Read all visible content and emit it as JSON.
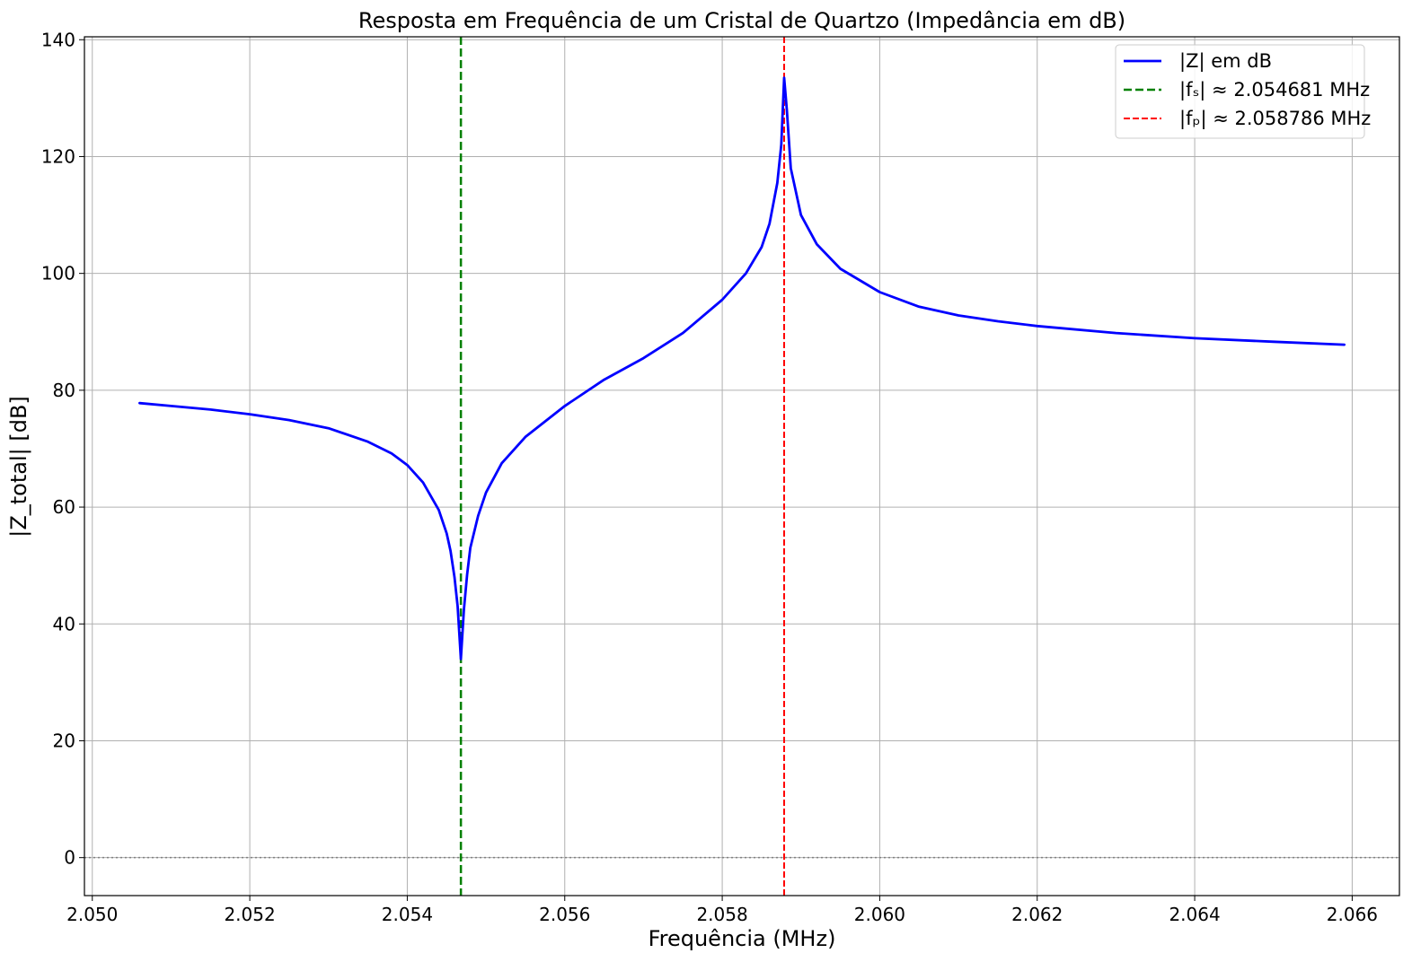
{
  "chart_data": {
    "type": "line",
    "title": "Resposta em Frequência de um Cristal de Quartzo (Impedância em dB)",
    "xlabel": "Frequência (MHz)",
    "ylabel": "|Z_total| [dB]",
    "xlim": [
      2.0499,
      2.0666
    ],
    "ylim": [
      -6.5,
      140.5
    ],
    "grid": true,
    "legend_position": "top-right",
    "x_ticks": [
      2.05,
      2.052,
      2.054,
      2.056,
      2.058,
      2.06,
      2.062,
      2.064,
      2.066
    ],
    "x_tick_labels": [
      "2.050",
      "2.052",
      "2.054",
      "2.056",
      "2.058",
      "2.060",
      "2.062",
      "2.064",
      "2.066"
    ],
    "y_ticks": [
      0,
      20,
      40,
      60,
      80,
      100,
      120,
      140
    ],
    "y_tick_labels": [
      "0",
      "20",
      "40",
      "60",
      "80",
      "100",
      "120",
      "140"
    ],
    "zero_line": {
      "y": 0,
      "color": "#808080",
      "style": "dotted"
    },
    "series": [
      {
        "name": "|Z| em dB",
        "color": "#0000ff",
        "style": "solid",
        "x": [
          2.0506,
          2.051,
          2.0515,
          2.052,
          2.0525,
          2.053,
          2.0535,
          2.0538,
          2.054,
          2.0542,
          2.0544,
          2.0545,
          2.05455,
          2.0546,
          2.05464,
          2.054681,
          2.05472,
          2.05476,
          2.0548,
          2.0549,
          2.055,
          2.0552,
          2.0555,
          2.056,
          2.0565,
          2.057,
          2.0575,
          2.058,
          2.0583,
          2.0585,
          2.0586,
          2.0587,
          2.05875,
          2.058786,
          2.05882,
          2.05887,
          2.059,
          2.0591,
          2.0592,
          2.0595,
          2.06,
          2.0605,
          2.061,
          2.0615,
          2.062,
          2.063,
          2.064,
          2.065,
          2.0659
        ],
        "y": [
          77.8,
          77.3,
          76.7,
          75.9,
          74.9,
          73.5,
          71.2,
          69.2,
          67.2,
          64.2,
          59.5,
          55.5,
          52.5,
          48.0,
          43.0,
          34.0,
          42.5,
          48.5,
          53.0,
          58.5,
          62.5,
          67.5,
          72.0,
          77.3,
          81.8,
          85.5,
          89.8,
          95.5,
          100.0,
          104.5,
          108.5,
          115.5,
          122.0,
          133.5,
          128.0,
          118.0,
          110.0,
          107.5,
          105.0,
          100.8,
          96.8,
          94.3,
          92.8,
          91.8,
          91.0,
          89.8,
          88.9,
          88.3,
          87.8
        ]
      },
      {
        "name": "|fₛ| ≈ 2.054681 MHz",
        "color": "#008000",
        "style": "dashed",
        "vline_x": 2.054681
      },
      {
        "name": "|fₚ| ≈ 2.058786 MHz",
        "color": "#ff0000",
        "style": "dashed",
        "vline_x": 2.058786
      }
    ]
  }
}
